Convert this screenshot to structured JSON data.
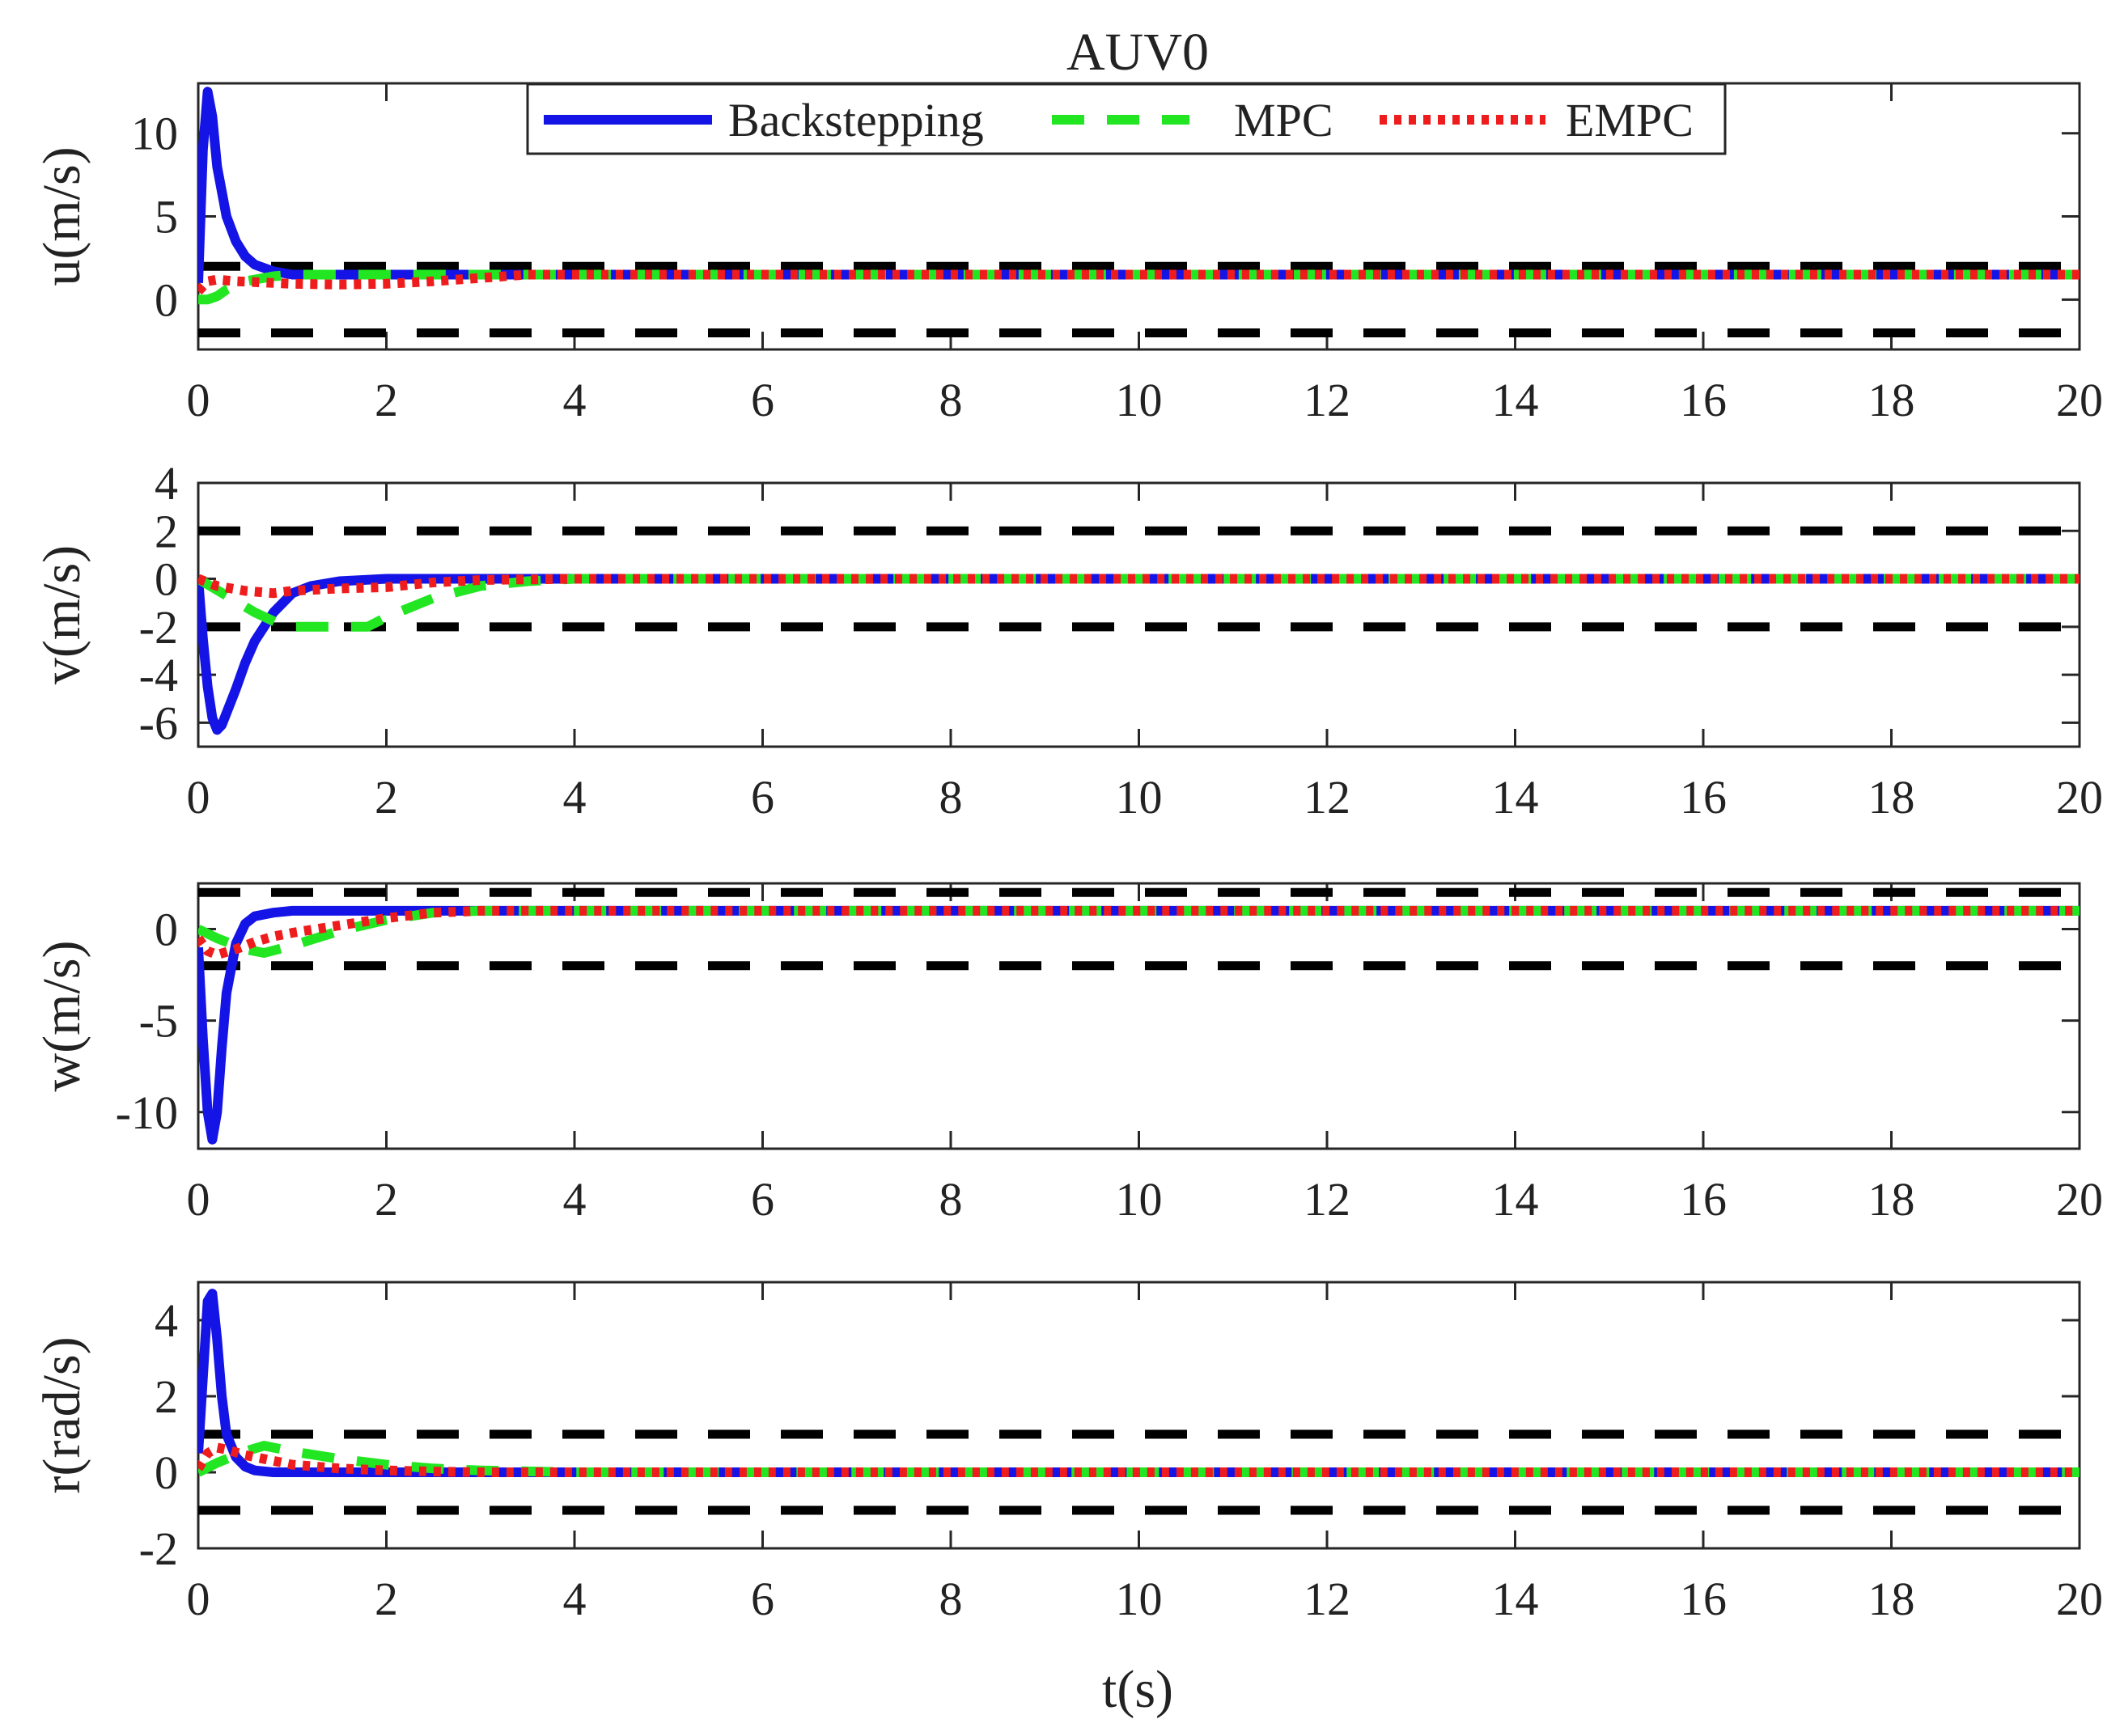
{
  "figure": {
    "title": "AUV0",
    "xlabel": "t(s)"
  },
  "legend": {
    "placement": "top-center",
    "entries": [
      {
        "name": "Backstepping",
        "color": "#1414e6",
        "style": "solid"
      },
      {
        "name": "MPC",
        "color": "#22e622",
        "style": "dashed"
      },
      {
        "name": "EMPC",
        "color": "#ee1c1c",
        "style": "dotted"
      }
    ]
  },
  "colors": {
    "backstepping": "#1414e6",
    "mpc": "#22e622",
    "empc": "#ee1c1c",
    "limit": "#000000"
  },
  "chart_data": [
    {
      "type": "line",
      "title": "AUV0",
      "xlabel": "",
      "ylabel": "u(m/s)",
      "xlim": [
        0,
        20
      ],
      "ylim": [
        -3,
        13
      ],
      "xticks": [
        "0",
        "2",
        "4",
        "6",
        "8",
        "10",
        "12",
        "14",
        "16",
        "18",
        "20"
      ],
      "yticks": [
        "0",
        "5",
        "10"
      ],
      "grid": false,
      "limits": [
        2,
        -2
      ],
      "series": [
        {
          "name": "Backstepping",
          "x": [
            0,
            0.05,
            0.1,
            0.15,
            0.2,
            0.3,
            0.4,
            0.5,
            0.6,
            0.8,
            1.0,
            1.5,
            2,
            4,
            20
          ],
          "y": [
            1,
            9,
            12.5,
            11,
            8,
            5,
            3.5,
            2.6,
            2.1,
            1.7,
            1.5,
            1.5,
            1.5,
            1.5,
            1.5
          ]
        },
        {
          "name": "MPC",
          "x": [
            0,
            0.1,
            0.2,
            0.3,
            0.5,
            0.8,
            1.0,
            1.5,
            2,
            3,
            4,
            20
          ],
          "y": [
            0,
            0,
            0.2,
            0.6,
            1.1,
            1.4,
            1.5,
            1.5,
            1.5,
            1.5,
            1.5,
            1.5
          ]
        },
        {
          "name": "EMPC",
          "x": [
            0,
            0.1,
            0.2,
            0.4,
            0.6,
            0.8,
            1.0,
            1.5,
            2.0,
            2.5,
            3.0,
            3.5,
            4,
            20
          ],
          "y": [
            0.5,
            1.1,
            1.2,
            1.1,
            1.05,
            1.0,
            0.95,
            0.9,
            0.95,
            1.1,
            1.3,
            1.5,
            1.5,
            1.5
          ]
        }
      ]
    },
    {
      "type": "line",
      "title": "",
      "xlabel": "",
      "ylabel": "v(m/s)",
      "xlim": [
        0,
        20
      ],
      "ylim": [
        -7,
        4
      ],
      "xticks": [
        "0",
        "2",
        "4",
        "6",
        "8",
        "10",
        "12",
        "14",
        "16",
        "18",
        "20"
      ],
      "yticks": [
        "-6",
        "-4",
        "-2",
        "0",
        "2",
        "4"
      ],
      "grid": false,
      "limits": [
        2,
        -2
      ],
      "series": [
        {
          "name": "Backstepping",
          "x": [
            0,
            0.05,
            0.1,
            0.15,
            0.2,
            0.25,
            0.3,
            0.4,
            0.5,
            0.6,
            0.8,
            1.0,
            1.2,
            1.5,
            2.0,
            3.0,
            4,
            20
          ],
          "y": [
            0,
            -2.5,
            -4.5,
            -5.8,
            -6.3,
            -6.1,
            -5.6,
            -4.6,
            -3.5,
            -2.6,
            -1.4,
            -0.6,
            -0.3,
            -0.1,
            0,
            0,
            0,
            0
          ]
        },
        {
          "name": "MPC",
          "x": [
            0,
            0.3,
            0.6,
            0.9,
            1.0,
            1.5,
            1.8,
            2.0,
            2.5,
            3.0,
            3.5,
            4,
            20
          ],
          "y": [
            0,
            -0.7,
            -1.4,
            -1.95,
            -2.0,
            -2.0,
            -2.0,
            -1.6,
            -0.8,
            -0.3,
            -0.1,
            0,
            0
          ]
        },
        {
          "name": "EMPC",
          "x": [
            0,
            0.2,
            0.5,
            0.8,
            1.0,
            1.5,
            2.0,
            2.5,
            3.0,
            4,
            20
          ],
          "y": [
            0,
            -0.3,
            -0.5,
            -0.6,
            -0.5,
            -0.4,
            -0.35,
            -0.15,
            -0.05,
            0,
            0
          ]
        }
      ]
    },
    {
      "type": "line",
      "title": "",
      "xlabel": "",
      "ylabel": "w(m/s)",
      "xlim": [
        0,
        20
      ],
      "ylim": [
        -12,
        2.5
      ],
      "xticks": [
        "0",
        "2",
        "4",
        "6",
        "8",
        "10",
        "12",
        "14",
        "16",
        "18",
        "20"
      ],
      "yticks": [
        "-10",
        "-5",
        "0"
      ],
      "grid": false,
      "limits": [
        2,
        -2
      ],
      "series": [
        {
          "name": "Backstepping",
          "x": [
            0,
            0.05,
            0.1,
            0.15,
            0.2,
            0.25,
            0.3,
            0.4,
            0.5,
            0.6,
            0.8,
            1.0,
            1.5,
            2.0,
            3.0,
            20
          ],
          "y": [
            -1,
            -6,
            -10,
            -11.5,
            -10,
            -6.5,
            -3.5,
            -0.8,
            0.3,
            0.7,
            0.9,
            1.0,
            1.0,
            1.0,
            1.0,
            1.0
          ]
        },
        {
          "name": "MPC",
          "x": [
            0,
            0.2,
            0.5,
            0.7,
            1.0,
            1.5,
            2.0,
            2.5,
            3.0,
            4,
            20
          ],
          "y": [
            0,
            -0.5,
            -1.1,
            -1.3,
            -0.9,
            -0.1,
            0.5,
            0.9,
            1.0,
            1.0,
            1.0
          ]
        },
        {
          "name": "EMPC",
          "x": [
            0,
            0.1,
            0.2,
            0.4,
            0.6,
            0.8,
            1.0,
            1.5,
            2.0,
            2.5,
            3.0,
            20
          ],
          "y": [
            -0.5,
            -1.2,
            -1.4,
            -1.1,
            -0.7,
            -0.4,
            -0.2,
            0.2,
            0.6,
            0.9,
            1.0,
            1.0
          ]
        }
      ]
    },
    {
      "type": "line",
      "title": "",
      "xlabel": "t(s)",
      "ylabel": "r(rad/s)",
      "xlim": [
        0,
        20
      ],
      "ylim": [
        -2,
        5
      ],
      "xticks": [
        "0",
        "2",
        "4",
        "6",
        "8",
        "10",
        "12",
        "14",
        "16",
        "18",
        "20"
      ],
      "yticks": [
        "-2",
        "0",
        "2",
        "4"
      ],
      "grid": false,
      "limits": [
        1,
        -1
      ],
      "series": [
        {
          "name": "Backstepping",
          "x": [
            0,
            0.05,
            0.1,
            0.15,
            0.2,
            0.25,
            0.3,
            0.4,
            0.5,
            0.6,
            0.8,
            1.0,
            1.5,
            2,
            20
          ],
          "y": [
            0.5,
            2.5,
            4.5,
            4.7,
            3.5,
            2.0,
            1.0,
            0.4,
            0.15,
            0.05,
            0,
            0,
            0,
            0,
            0
          ]
        },
        {
          "name": "MPC",
          "x": [
            0,
            0.2,
            0.5,
            0.7,
            1.0,
            1.5,
            2.0,
            2.5,
            3.0,
            4,
            20
          ],
          "y": [
            0,
            0.25,
            0.55,
            0.7,
            0.55,
            0.35,
            0.2,
            0.1,
            0.05,
            0,
            0
          ]
        },
        {
          "name": "EMPC",
          "x": [
            0,
            0.1,
            0.2,
            0.3,
            0.5,
            0.8,
            1.0,
            1.5,
            2.0,
            2.5,
            3.0,
            20
          ],
          "y": [
            0.1,
            0.5,
            0.65,
            0.6,
            0.45,
            0.3,
            0.2,
            0.1,
            0.05,
            0.02,
            0,
            0
          ]
        }
      ]
    }
  ]
}
